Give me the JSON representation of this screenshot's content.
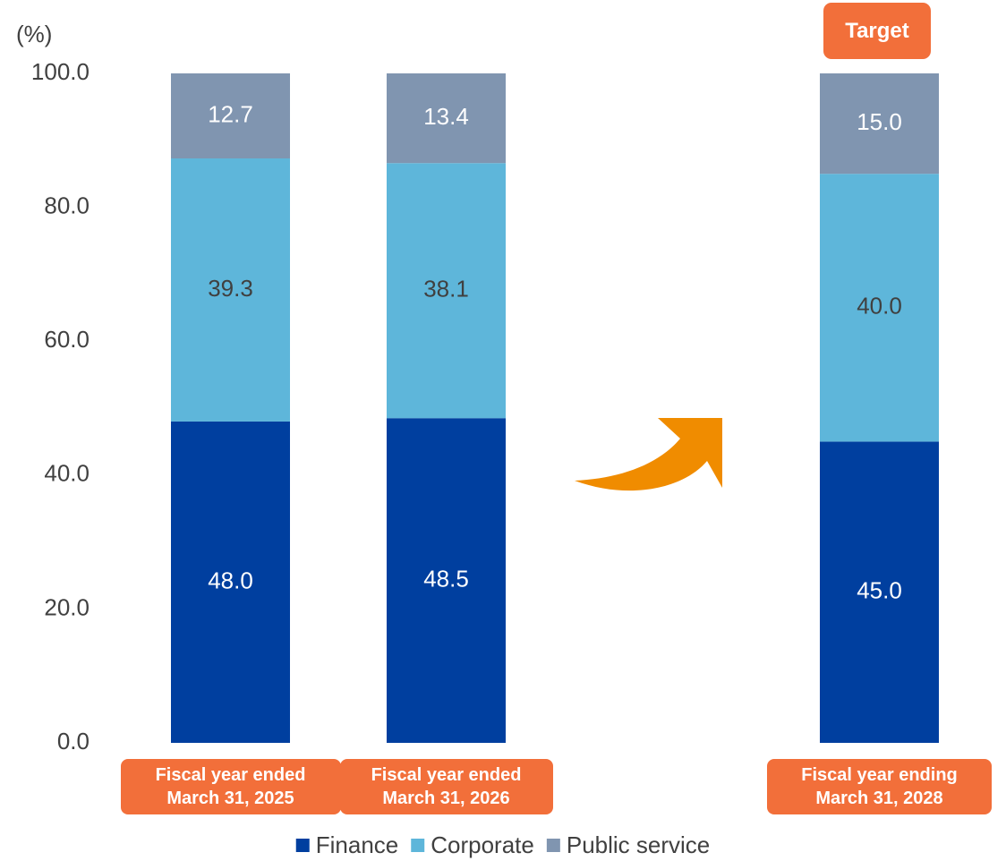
{
  "chart_data": {
    "type": "stacked_bar",
    "y_axis_label": "(%)",
    "categories": [
      "Fiscal year ended\nMarch 31, 2025",
      "Fiscal year ended\nMarch 31, 2026",
      "Fiscal year ending\nMarch 31, 2028"
    ],
    "series": [
      {
        "name": "Finance",
        "color": "#003f9f",
        "values": [
          48.0,
          48.5,
          45.0
        ],
        "value_labels": [
          "48.0",
          "48.5",
          "45.0"
        ]
      },
      {
        "name": "Corporate",
        "color": "#5eb6da",
        "values": [
          39.3,
          38.1,
          40.0
        ],
        "value_labels": [
          "39.3",
          "38.1",
          "40.0"
        ]
      },
      {
        "name": "Public service",
        "color": "#8095b0",
        "values": [
          12.7,
          13.4,
          15.0
        ],
        "value_labels": [
          "12.7",
          "13.4",
          "15.0"
        ]
      }
    ],
    "ylim": [
      0,
      100
    ],
    "yticks": [
      {
        "value": 0,
        "label": "0.0"
      },
      {
        "value": 20,
        "label": "20.0"
      },
      {
        "value": 40,
        "label": "40.0"
      },
      {
        "value": 60,
        "label": "60.0"
      },
      {
        "value": 80,
        "label": "80.0"
      },
      {
        "value": 100,
        "label": "100.0"
      }
    ],
    "annotation": "Target",
    "legend": "bottom"
  }
}
